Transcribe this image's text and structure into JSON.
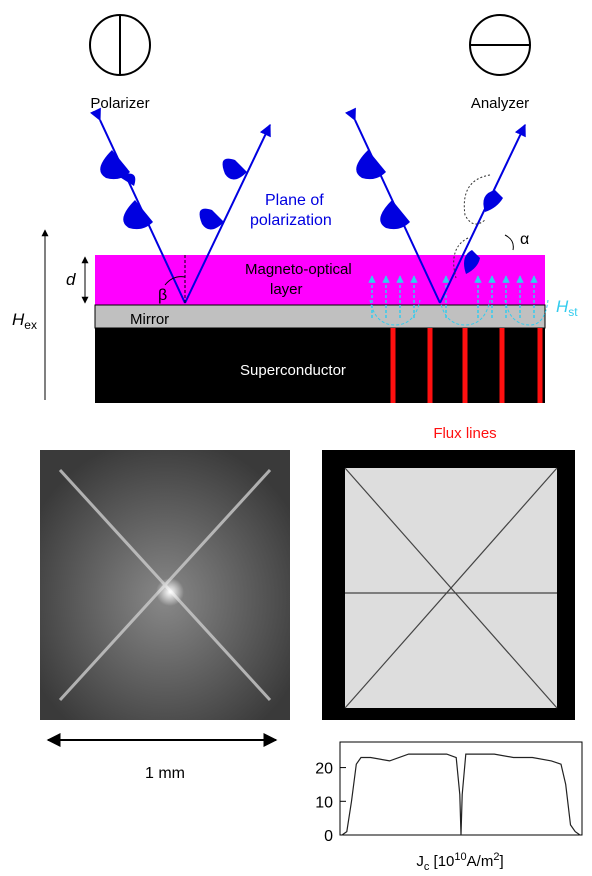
{
  "labels": {
    "polarizer": "Polarizer",
    "analyzer": "Analyzer",
    "plane": [
      "Plane of",
      "polarization"
    ],
    "alpha": "α",
    "beta": "β",
    "d": "d",
    "mo_layer": [
      "Magneto-optical",
      "layer"
    ],
    "mirror": "Mirror",
    "h_ex": {
      "main": "H",
      "sub": "ex"
    },
    "h_st": {
      "main": "H",
      "sub": "st"
    },
    "superconductor": "Superconductor",
    "flux_lines": "Flux lines",
    "scale": "1 mm"
  },
  "chart_data": {
    "type": "line",
    "x_label": {
      "main": "J",
      "sub": "c",
      "open": " [10",
      "exp": "10",
      "unit": "A/m",
      "exp2": "2",
      "close": "]"
    },
    "x": [
      0,
      0.02,
      0.04,
      0.06,
      0.08,
      0.12,
      0.2,
      0.28,
      0.36,
      0.44,
      0.48,
      0.495,
      0.5,
      0.505,
      0.52,
      0.56,
      0.64,
      0.72,
      0.8,
      0.88,
      0.92,
      0.94,
      0.96,
      0.98,
      1
    ],
    "values": [
      0,
      1,
      10,
      21,
      23,
      23,
      22,
      24,
      24,
      24,
      23,
      12,
      0,
      12,
      24,
      24,
      24,
      23,
      23,
      22,
      21,
      15,
      3,
      1,
      0
    ],
    "color": "#222222",
    "xlim": [
      0,
      1
    ],
    "ylim": [
      0,
      27
    ],
    "yticks": [
      0,
      10,
      20
    ]
  }
}
